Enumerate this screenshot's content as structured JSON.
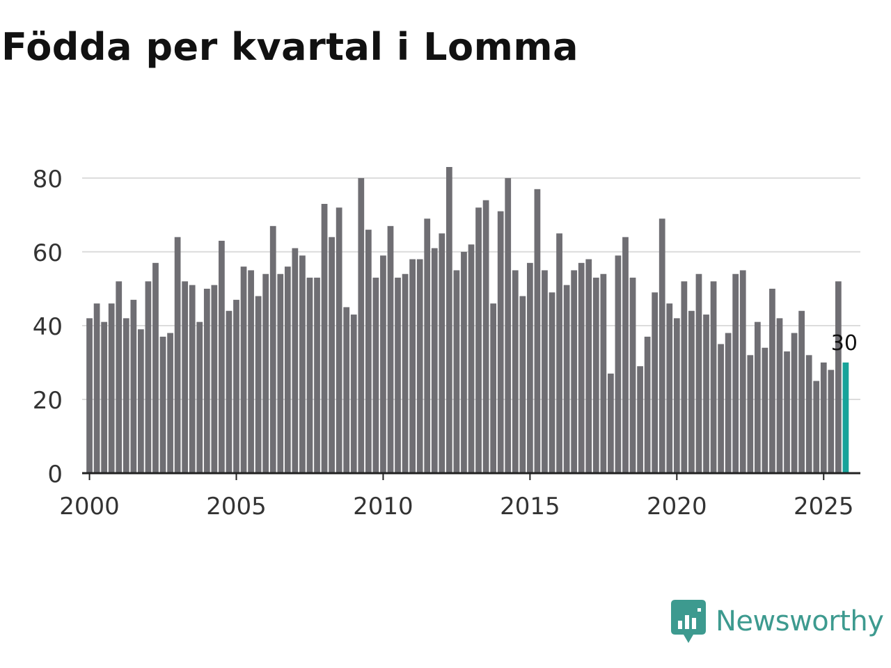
{
  "title": "Födda per kvartal i Lomma",
  "brand": {
    "name": "Newsworthy",
    "color": "#3d9a8f",
    "icon": "newsworthy-logo-icon"
  },
  "colors": {
    "bar": "#6f6e73",
    "highlight": "#18a39a",
    "grid": "#dcdcdc",
    "axis": "#222222",
    "tick_text": "#333333"
  },
  "chart_data": {
    "type": "bar",
    "title": "Födda per kvartal i Lomma",
    "xlabel": "",
    "ylabel": "",
    "ylim": [
      0,
      83
    ],
    "xlim": [
      1999.75,
      2026.25
    ],
    "yticks": [
      "0",
      "20",
      "40",
      "60",
      "80"
    ],
    "xticks": [
      "2000",
      "2005",
      "2010",
      "2015",
      "2020",
      "2025"
    ],
    "grid": true,
    "start_year": 2000,
    "highlight_index": 103,
    "highlight_label": "30",
    "values": [
      42,
      46,
      41,
      46,
      52,
      42,
      47,
      39,
      52,
      57,
      37,
      38,
      64,
      52,
      51,
      41,
      50,
      51,
      63,
      44,
      47,
      56,
      55,
      48,
      54,
      67,
      54,
      56,
      61,
      59,
      53,
      53,
      73,
      64,
      72,
      45,
      43,
      80,
      66,
      53,
      59,
      67,
      53,
      54,
      58,
      58,
      69,
      61,
      65,
      83,
      55,
      60,
      62,
      72,
      74,
      46,
      71,
      80,
      55,
      48,
      57,
      77,
      55,
      49,
      65,
      51,
      55,
      57,
      58,
      53,
      54,
      27,
      59,
      64,
      53,
      29,
      37,
      49,
      69,
      46,
      42,
      52,
      44,
      54,
      43,
      52,
      35,
      38,
      54,
      55,
      32,
      41,
      34,
      50,
      42,
      33,
      38,
      44,
      32,
      25,
      30,
      28,
      52,
      30
    ]
  }
}
